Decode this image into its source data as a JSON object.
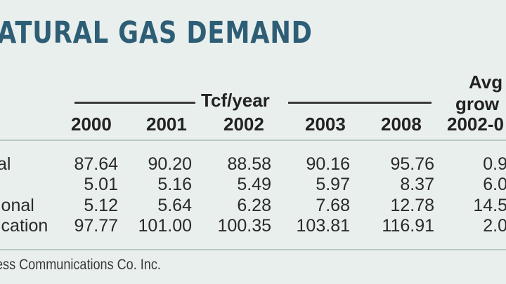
{
  "title": "ATURAL GAS DEMAND",
  "header": {
    "unit_label": "Tcf/year",
    "years": [
      "2000",
      "2001",
      "2002",
      "2003",
      "2008"
    ],
    "growth_line1": "Avg",
    "growth_line2": "grow",
    "growth_line3": "2002-0"
  },
  "rows": [
    {
      "label": "al",
      "values": [
        "87.64",
        "90.20",
        "88.58",
        "90.16",
        "95.76"
      ],
      "growth": "0.9"
    },
    {
      "label": "",
      "values": [
        "5.01",
        "5.16",
        "5.49",
        "5.97",
        "8.37"
      ],
      "growth": "6.0"
    },
    {
      "label": "ional",
      "values": [
        "5.12",
        "5.64",
        "6.28",
        "7.68",
        "12.78"
      ],
      "growth": "14.5"
    },
    {
      "label": "ication",
      "values": [
        "97.77",
        "101.00",
        "100.35",
        "103.81",
        "116.91"
      ],
      "growth": "2.0"
    }
  ],
  "source": "ess Communications Co. Inc.",
  "colors": {
    "title": "#2e5e76",
    "background": "#e9efed",
    "rule": "#b9c6c4"
  }
}
